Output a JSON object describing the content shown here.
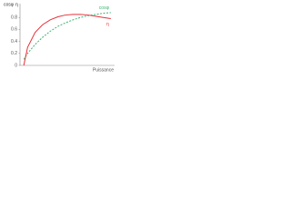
{
  "chart_data": {
    "type": "line",
    "y_labels": [
      "cosφ",
      "η"
    ],
    "xlabel": "Puissance",
    "x": [
      0.05,
      0.1,
      0.2,
      0.3,
      0.4,
      0.5,
      0.6,
      0.7,
      0.8,
      0.9,
      1.0,
      1.1,
      1.2
    ],
    "series": [
      {
        "name": "cosφ",
        "color": "#3cb371",
        "dashed": true,
        "values": [
          0.1,
          0.2,
          0.35,
          0.47,
          0.57,
          0.65,
          0.71,
          0.76,
          0.8,
          0.83,
          0.85,
          0.87,
          0.88
        ]
      },
      {
        "name": "η",
        "color": "#e8303a",
        "dashed": false,
        "values": [
          0,
          0.3,
          0.55,
          0.68,
          0.76,
          0.81,
          0.84,
          0.85,
          0.85,
          0.84,
          0.82,
          0.8,
          0.78
        ]
      }
    ],
    "xlim": [
      0,
      1.25
    ],
    "ylim": [
      0,
      1
    ],
    "yticks": [
      0,
      0.2,
      0.4,
      0.6,
      0.8
    ]
  }
}
